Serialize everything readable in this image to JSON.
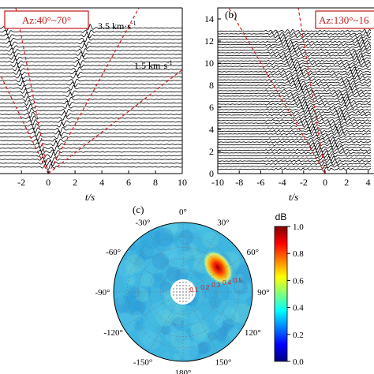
{
  "panel_a": {
    "label": "",
    "az_box": "Az:40°~70°",
    "speed_fast": "3.5 km·s",
    "speed_slow": "1.5 km·s",
    "speed_sup": "-1",
    "xlabel": "t/s",
    "xticks": [
      "-2",
      "0",
      "2",
      "4",
      "6",
      "8",
      "10"
    ],
    "xtick_values": [
      -2,
      0,
      2,
      4,
      6,
      8,
      10
    ],
    "xlim": [
      -3.6,
      10
    ],
    "ylim": [
      0,
      15
    ]
  },
  "panel_b": {
    "label": "(b)",
    "az_box": "Az:130°~16",
    "xlabel": "t/s",
    "xticks": [
      "-10",
      "-8",
      "-6",
      "-4",
      "-2",
      "0",
      "2",
      "4"
    ],
    "xtick_values": [
      -10,
      -8,
      -6,
      -4,
      -2,
      0,
      2,
      4
    ],
    "yticks": [
      "0",
      "2",
      "4",
      "6",
      "8",
      "10",
      "12",
      "14"
    ],
    "ytick_values": [
      0,
      2,
      4,
      6,
      8,
      10,
      12,
      14
    ],
    "xlim": [
      -10,
      4.7
    ],
    "ylim": [
      0,
      15
    ]
  },
  "panel_c": {
    "label": "(c)",
    "az_labels": [
      "0°",
      "30°",
      "60°",
      "90°",
      "120°",
      "150°",
      "180°",
      "-150°",
      "-120°",
      "-90°",
      "-60°",
      "-30°"
    ],
    "az_values": [
      0,
      30,
      60,
      90,
      120,
      150,
      180,
      -150,
      -120,
      -90,
      -60,
      -30
    ],
    "radial_labels": [
      "0.1",
      "0.2",
      "0.3",
      "0.4",
      "0.5"
    ],
    "radial_values": [
      0.1,
      0.2,
      0.3,
      0.4,
      0.5
    ],
    "colorbar": {
      "title": "dB",
      "ticks": [
        "1.0",
        "0.8",
        "0.6",
        "0.4",
        "0.2",
        "0.0"
      ],
      "tick_values": [
        1.0,
        0.8,
        0.6,
        0.4,
        0.2,
        0.0
      ],
      "colors": [
        "#00007f",
        "#0000ff",
        "#007fff",
        "#00ffff",
        "#7fff7f",
        "#ffff00",
        "#ff7f00",
        "#ff0000",
        "#7f0000"
      ]
    },
    "peak": {
      "azimuth_deg": 55,
      "slowness": 0.38
    }
  },
  "colors": {
    "guide_line": "#d42020",
    "trace": "#000000",
    "frame": "#000000",
    "field_base": "#3fb6e0"
  }
}
